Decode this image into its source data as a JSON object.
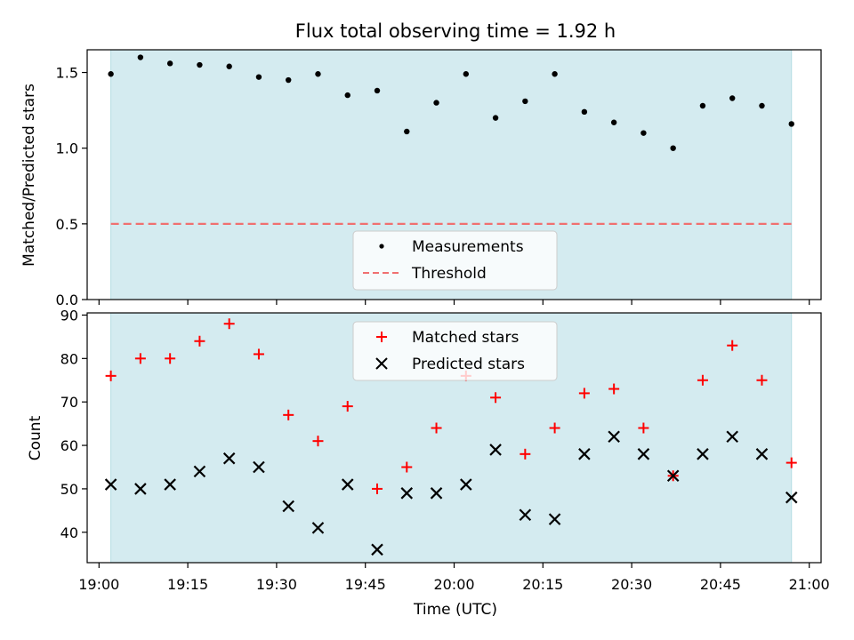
{
  "chart_data": [
    {
      "type": "scatter",
      "title": "Flux total observing time = 1.92 h",
      "ylabel": "Matched/Predicted stars",
      "ylim": [
        0,
        1.65
      ],
      "yticks": [
        0.0,
        0.5,
        1.0,
        1.5
      ],
      "ytick_labels": [
        "0.0",
        "0.5",
        "1.0",
        "1.5"
      ],
      "xlim": [
        "18:58",
        "21:02"
      ],
      "observing_span": [
        "19:02",
        "20:57"
      ],
      "observing_span_color": "#d4ebf0",
      "series": [
        {
          "name": "Measurements",
          "marker": "dot",
          "color": "#000000",
          "x": [
            "19:02",
            "19:07",
            "19:12",
            "19:17",
            "19:22",
            "19:27",
            "19:32",
            "19:37",
            "19:42",
            "19:47",
            "19:52",
            "19:57",
            "20:02",
            "20:07",
            "20:12",
            "20:17",
            "20:22",
            "20:27",
            "20:32",
            "20:37",
            "20:42",
            "20:47",
            "20:52",
            "20:57"
          ],
          "y": [
            1.49,
            1.6,
            1.56,
            1.55,
            1.54,
            1.47,
            1.45,
            1.49,
            1.35,
            1.38,
            1.11,
            1.3,
            1.49,
            1.2,
            1.31,
            1.49,
            1.24,
            1.17,
            1.1,
            1.0,
            1.28,
            1.33,
            1.28,
            1.16
          ]
        },
        {
          "name": "Threshold",
          "marker": "dashed-line",
          "color": "#f07070",
          "x": [
            "19:02",
            "20:57"
          ],
          "y": [
            0.5,
            0.5
          ]
        }
      ],
      "legend_position": "lower-center"
    },
    {
      "type": "scatter",
      "xlabel": "Time (UTC)",
      "ylabel": "Count",
      "ylim": [
        33,
        90.5
      ],
      "yticks": [
        40,
        50,
        60,
        70,
        80,
        90
      ],
      "ytick_labels": [
        "40",
        "50",
        "60",
        "70",
        "80",
        "90"
      ],
      "xlim": [
        "18:58",
        "21:02"
      ],
      "xticks": [
        "19:00",
        "19:15",
        "19:30",
        "19:45",
        "20:00",
        "20:15",
        "20:30",
        "20:45",
        "21:00"
      ],
      "xtick_labels": [
        "19:00",
        "19:15",
        "19:30",
        "19:45",
        "20:00",
        "20:15",
        "20:30",
        "20:45",
        "21:00"
      ],
      "observing_span": [
        "19:02",
        "20:57"
      ],
      "observing_span_color": "#d4ebf0",
      "series": [
        {
          "name": "Matched stars",
          "marker": "plus",
          "color": "#ff0000",
          "x": [
            "19:02",
            "19:07",
            "19:12",
            "19:17",
            "19:22",
            "19:27",
            "19:32",
            "19:37",
            "19:42",
            "19:47",
            "19:52",
            "19:57",
            "20:02",
            "20:07",
            "20:12",
            "20:17",
            "20:22",
            "20:27",
            "20:32",
            "20:37",
            "20:42",
            "20:47",
            "20:52",
            "20:57"
          ],
          "y": [
            76,
            80,
            80,
            84,
            88,
            81,
            67,
            61,
            69,
            50,
            55,
            64,
            76,
            71,
            58,
            64,
            72,
            73,
            64,
            53,
            75,
            83,
            75,
            56
          ]
        },
        {
          "name": "Predicted stars",
          "marker": "x",
          "color": "#000000",
          "x": [
            "19:02",
            "19:07",
            "19:12",
            "19:17",
            "19:22",
            "19:27",
            "19:32",
            "19:37",
            "19:42",
            "19:47",
            "19:52",
            "19:57",
            "20:02",
            "20:07",
            "20:12",
            "20:17",
            "20:22",
            "20:27",
            "20:32",
            "20:37",
            "20:42",
            "20:47",
            "20:52",
            "20:57"
          ],
          "y": [
            51,
            50,
            51,
            54,
            57,
            55,
            46,
            41,
            51,
            36,
            49,
            49,
            51,
            59,
            44,
            43,
            58,
            62,
            58,
            53,
            58,
            62,
            58,
            48
          ]
        }
      ],
      "legend_position": "upper-center"
    }
  ]
}
